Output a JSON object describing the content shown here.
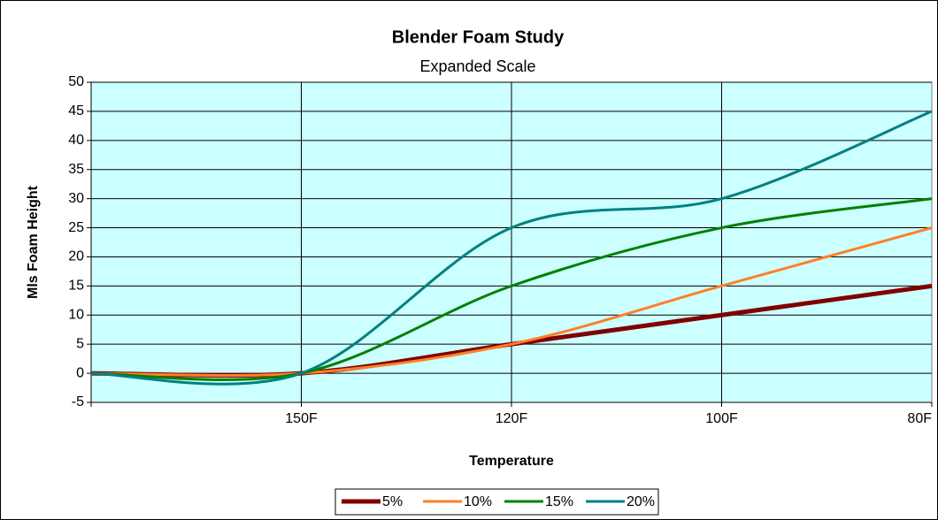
{
  "chart_data": {
    "type": "line",
    "title": "Blender Foam Study",
    "subtitle": "Expanded Scale",
    "x_label": "Temperature",
    "y_label": "Mls Foam Height",
    "categories": [
      null,
      "150F",
      "120F",
      "100F",
      "80F"
    ],
    "series": [
      {
        "name": "5%",
        "color": "#800000",
        "values": [
          0,
          0,
          5,
          10,
          15
        ]
      },
      {
        "name": "10%",
        "color": "#ff7f27",
        "values": [
          0,
          0,
          5,
          15,
          25
        ]
      },
      {
        "name": "15%",
        "color": "#008000",
        "values": [
          0,
          0,
          15,
          25,
          30
        ]
      },
      {
        "name": "20%",
        "color": "#008080",
        "values": [
          0,
          0,
          25,
          30,
          45
        ]
      }
    ],
    "ylim": [
      -5,
      50
    ],
    "yticks": [
      -5,
      0,
      5,
      10,
      15,
      20,
      25,
      30,
      35,
      40,
      45,
      50
    ],
    "grid": true,
    "smooth": true,
    "legend": "bottom"
  }
}
